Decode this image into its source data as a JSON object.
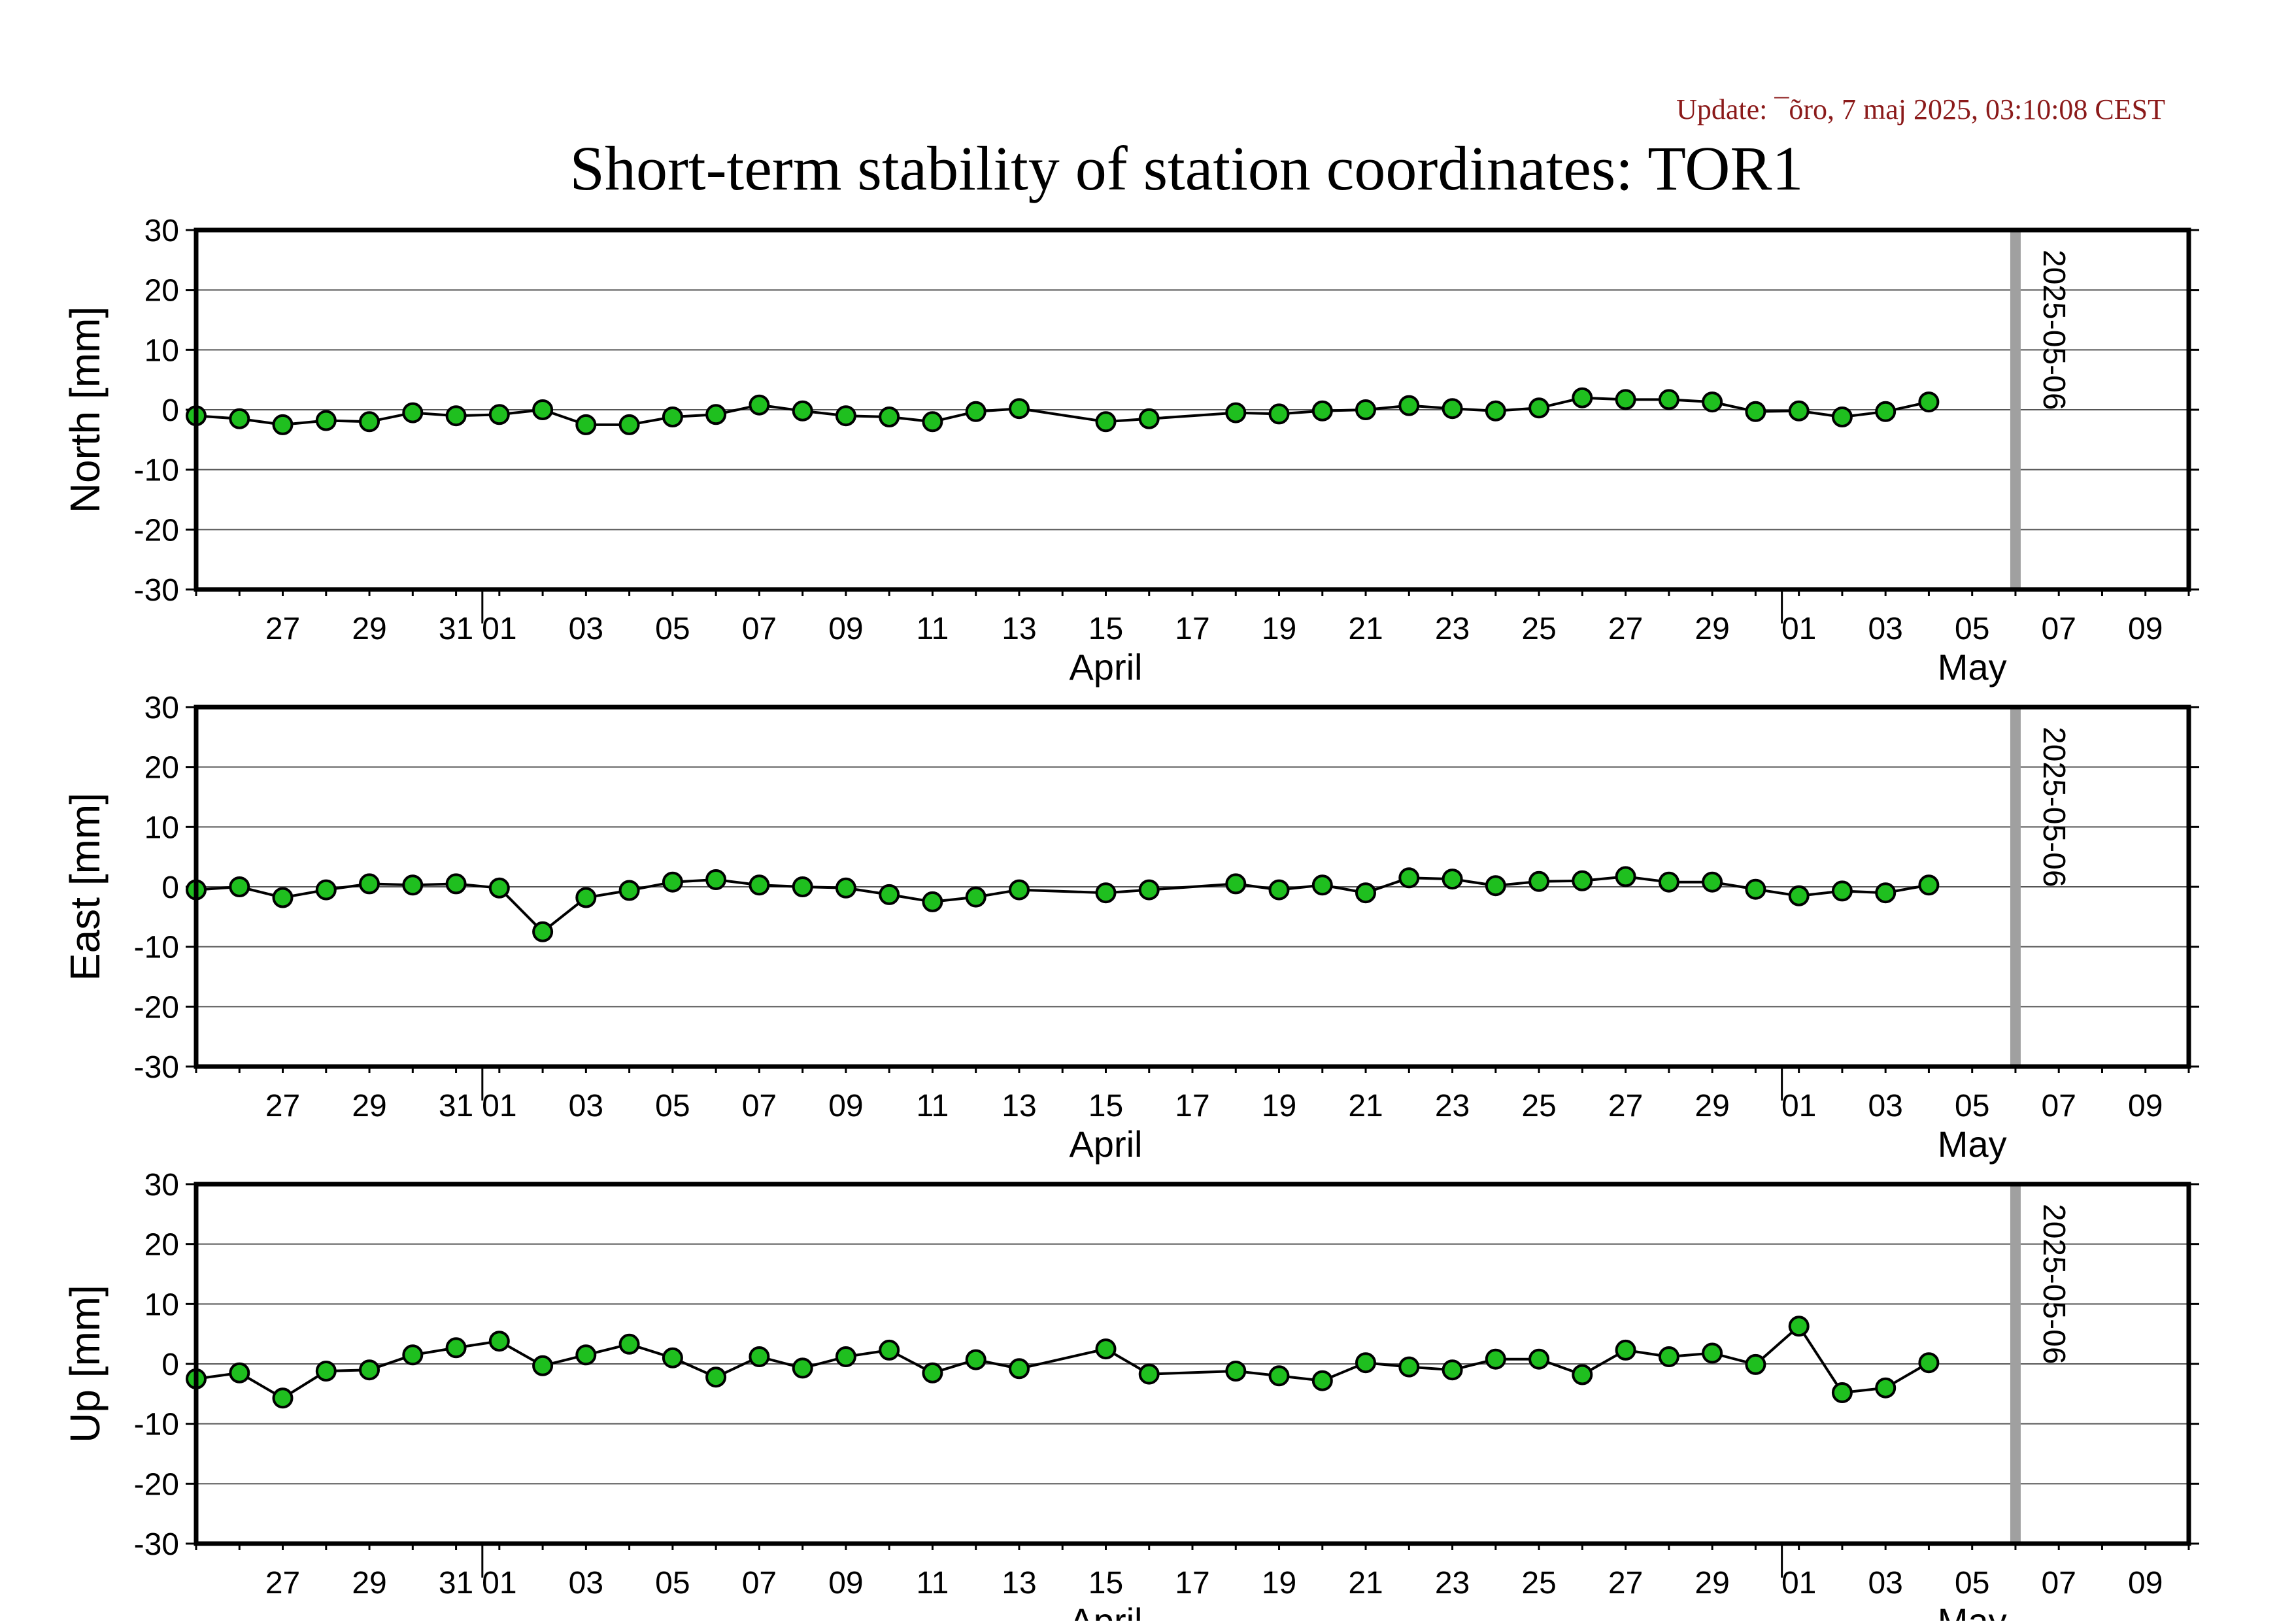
{
  "update_text": "Update: ¯õro, 7 maj 2025, 03:10:08 CEST",
  "title": "Short-term stability of station coordinates: TOR1",
  "colors": {
    "update_text": "#8b1a1a",
    "marker_fill": "#1fbf1f",
    "marker_edge": "#000000",
    "line": "#000000",
    "grid": "#555555",
    "vline": "#a0a0a0"
  },
  "chart_data": [
    {
      "type": "line",
      "ylabel": "North [mm]",
      "ylim": [
        -30,
        30
      ],
      "yticks": [
        -30,
        -20,
        -10,
        0,
        10,
        20,
        30
      ],
      "grid": true,
      "vline_label": "2025-05-06",
      "x": [
        "2025-03-25",
        "2025-03-26",
        "2025-03-27",
        "2025-03-28",
        "2025-03-29",
        "2025-03-30",
        "2025-03-31",
        "2025-04-01",
        "2025-04-02",
        "2025-04-03",
        "2025-04-04",
        "2025-04-05",
        "2025-04-06",
        "2025-04-07",
        "2025-04-08",
        "2025-04-09",
        "2025-04-10",
        "2025-04-11",
        "2025-04-12",
        "2025-04-13",
        "2025-04-15",
        "2025-04-16",
        "2025-04-18",
        "2025-04-19",
        "2025-04-20",
        "2025-04-21",
        "2025-04-22",
        "2025-04-23",
        "2025-04-24",
        "2025-04-25",
        "2025-04-26",
        "2025-04-27",
        "2025-04-28",
        "2025-04-29",
        "2025-04-30",
        "2025-05-01",
        "2025-05-02",
        "2025-05-03",
        "2025-05-04"
      ],
      "values": [
        -1.0,
        -1.5,
        -2.5,
        -1.8,
        -2.0,
        -0.5,
        -1.0,
        -0.8,
        0.0,
        -2.5,
        -2.5,
        -1.2,
        -0.8,
        0.8,
        -0.2,
        -1.0,
        -1.2,
        -2.0,
        -0.3,
        0.2,
        -2.0,
        -1.5,
        -0.5,
        -0.7,
        -0.2,
        0.0,
        0.7,
        0.2,
        -0.2,
        0.3,
        2.0,
        1.7,
        1.7,
        1.3,
        -0.3,
        -0.2,
        -1.2,
        -0.3,
        1.3
      ]
    },
    {
      "type": "line",
      "ylabel": "East [mm]",
      "ylim": [
        -30,
        30
      ],
      "yticks": [
        -30,
        -20,
        -10,
        0,
        10,
        20,
        30
      ],
      "grid": true,
      "vline_label": "2025-05-06",
      "x": [
        "2025-03-25",
        "2025-03-26",
        "2025-03-27",
        "2025-03-28",
        "2025-03-29",
        "2025-03-30",
        "2025-03-31",
        "2025-04-01",
        "2025-04-02",
        "2025-04-03",
        "2025-04-04",
        "2025-04-05",
        "2025-04-06",
        "2025-04-07",
        "2025-04-08",
        "2025-04-09",
        "2025-04-10",
        "2025-04-11",
        "2025-04-12",
        "2025-04-13",
        "2025-04-15",
        "2025-04-16",
        "2025-04-18",
        "2025-04-19",
        "2025-04-20",
        "2025-04-21",
        "2025-04-22",
        "2025-04-23",
        "2025-04-24",
        "2025-04-25",
        "2025-04-26",
        "2025-04-27",
        "2025-04-28",
        "2025-04-29",
        "2025-04-30",
        "2025-05-01",
        "2025-05-02",
        "2025-05-03",
        "2025-05-04"
      ],
      "values": [
        -0.5,
        0.0,
        -1.8,
        -0.5,
        0.5,
        0.3,
        0.5,
        -0.2,
        -7.5,
        -1.8,
        -0.6,
        0.8,
        1.2,
        0.3,
        0.0,
        -0.2,
        -1.3,
        -2.5,
        -1.7,
        -0.5,
        -1.0,
        -0.5,
        0.5,
        -0.5,
        0.3,
        -1.0,
        1.5,
        1.3,
        0.2,
        0.9,
        1.0,
        1.7,
        0.8,
        0.8,
        -0.4,
        -1.5,
        -0.7,
        -1.0,
        0.3
      ]
    },
    {
      "type": "line",
      "ylabel": "Up [mm]",
      "ylim": [
        -30,
        30
      ],
      "yticks": [
        -30,
        -20,
        -10,
        0,
        10,
        20,
        30
      ],
      "grid": true,
      "vline_label": "2025-05-06",
      "x": [
        "2025-03-25",
        "2025-03-26",
        "2025-03-27",
        "2025-03-28",
        "2025-03-29",
        "2025-03-30",
        "2025-03-31",
        "2025-04-01",
        "2025-04-02",
        "2025-04-03",
        "2025-04-04",
        "2025-04-05",
        "2025-04-06",
        "2025-04-07",
        "2025-04-08",
        "2025-04-09",
        "2025-04-10",
        "2025-04-11",
        "2025-04-12",
        "2025-04-13",
        "2025-04-15",
        "2025-04-16",
        "2025-04-18",
        "2025-04-19",
        "2025-04-20",
        "2025-04-21",
        "2025-04-22",
        "2025-04-23",
        "2025-04-24",
        "2025-04-25",
        "2025-04-26",
        "2025-04-27",
        "2025-04-28",
        "2025-04-29",
        "2025-04-30",
        "2025-05-01",
        "2025-05-02",
        "2025-05-03",
        "2025-05-04"
      ],
      "values": [
        -2.5,
        -1.5,
        -5.7,
        -1.2,
        -1.0,
        1.5,
        2.7,
        3.8,
        -0.3,
        1.5,
        3.3,
        1.0,
        -2.2,
        1.2,
        -0.7,
        1.2,
        2.3,
        -1.5,
        0.7,
        -0.8,
        2.5,
        -1.7,
        -1.2,
        -2.0,
        -2.8,
        0.2,
        -0.5,
        -1.0,
        0.8,
        0.8,
        -1.8,
        2.3,
        1.2,
        1.8,
        -0.1,
        6.3,
        -4.8,
        -4.0,
        0.2
      ]
    }
  ],
  "x_axis": {
    "start": "2025-03-25",
    "end": "2025-05-10",
    "day_tick_labels": [
      {
        "date": "2025-03-27",
        "label": "27"
      },
      {
        "date": "2025-03-29",
        "label": "29"
      },
      {
        "date": "2025-03-31",
        "label": "31"
      },
      {
        "date": "2025-04-01",
        "label": "01"
      },
      {
        "date": "2025-04-03",
        "label": "03"
      },
      {
        "date": "2025-04-05",
        "label": "05"
      },
      {
        "date": "2025-04-07",
        "label": "07"
      },
      {
        "date": "2025-04-09",
        "label": "09"
      },
      {
        "date": "2025-04-11",
        "label": "11"
      },
      {
        "date": "2025-04-13",
        "label": "13"
      },
      {
        "date": "2025-04-15",
        "label": "15"
      },
      {
        "date": "2025-04-17",
        "label": "17"
      },
      {
        "date": "2025-04-19",
        "label": "19"
      },
      {
        "date": "2025-04-21",
        "label": "21"
      },
      {
        "date": "2025-04-23",
        "label": "23"
      },
      {
        "date": "2025-04-25",
        "label": "25"
      },
      {
        "date": "2025-04-27",
        "label": "27"
      },
      {
        "date": "2025-04-29",
        "label": "29"
      },
      {
        "date": "2025-05-01",
        "label": "01"
      },
      {
        "date": "2025-05-03",
        "label": "03"
      },
      {
        "date": "2025-05-05",
        "label": "05"
      },
      {
        "date": "2025-05-07",
        "label": "07"
      },
      {
        "date": "2025-05-09",
        "label": "09"
      }
    ],
    "month_labels": [
      {
        "date": "2025-04-15",
        "label": "April"
      },
      {
        "date": "2025-05-05",
        "label": "May"
      }
    ],
    "month_boundaries": [
      "2025-04-01",
      "2025-05-01"
    ],
    "vline_date": "2025-05-06"
  }
}
